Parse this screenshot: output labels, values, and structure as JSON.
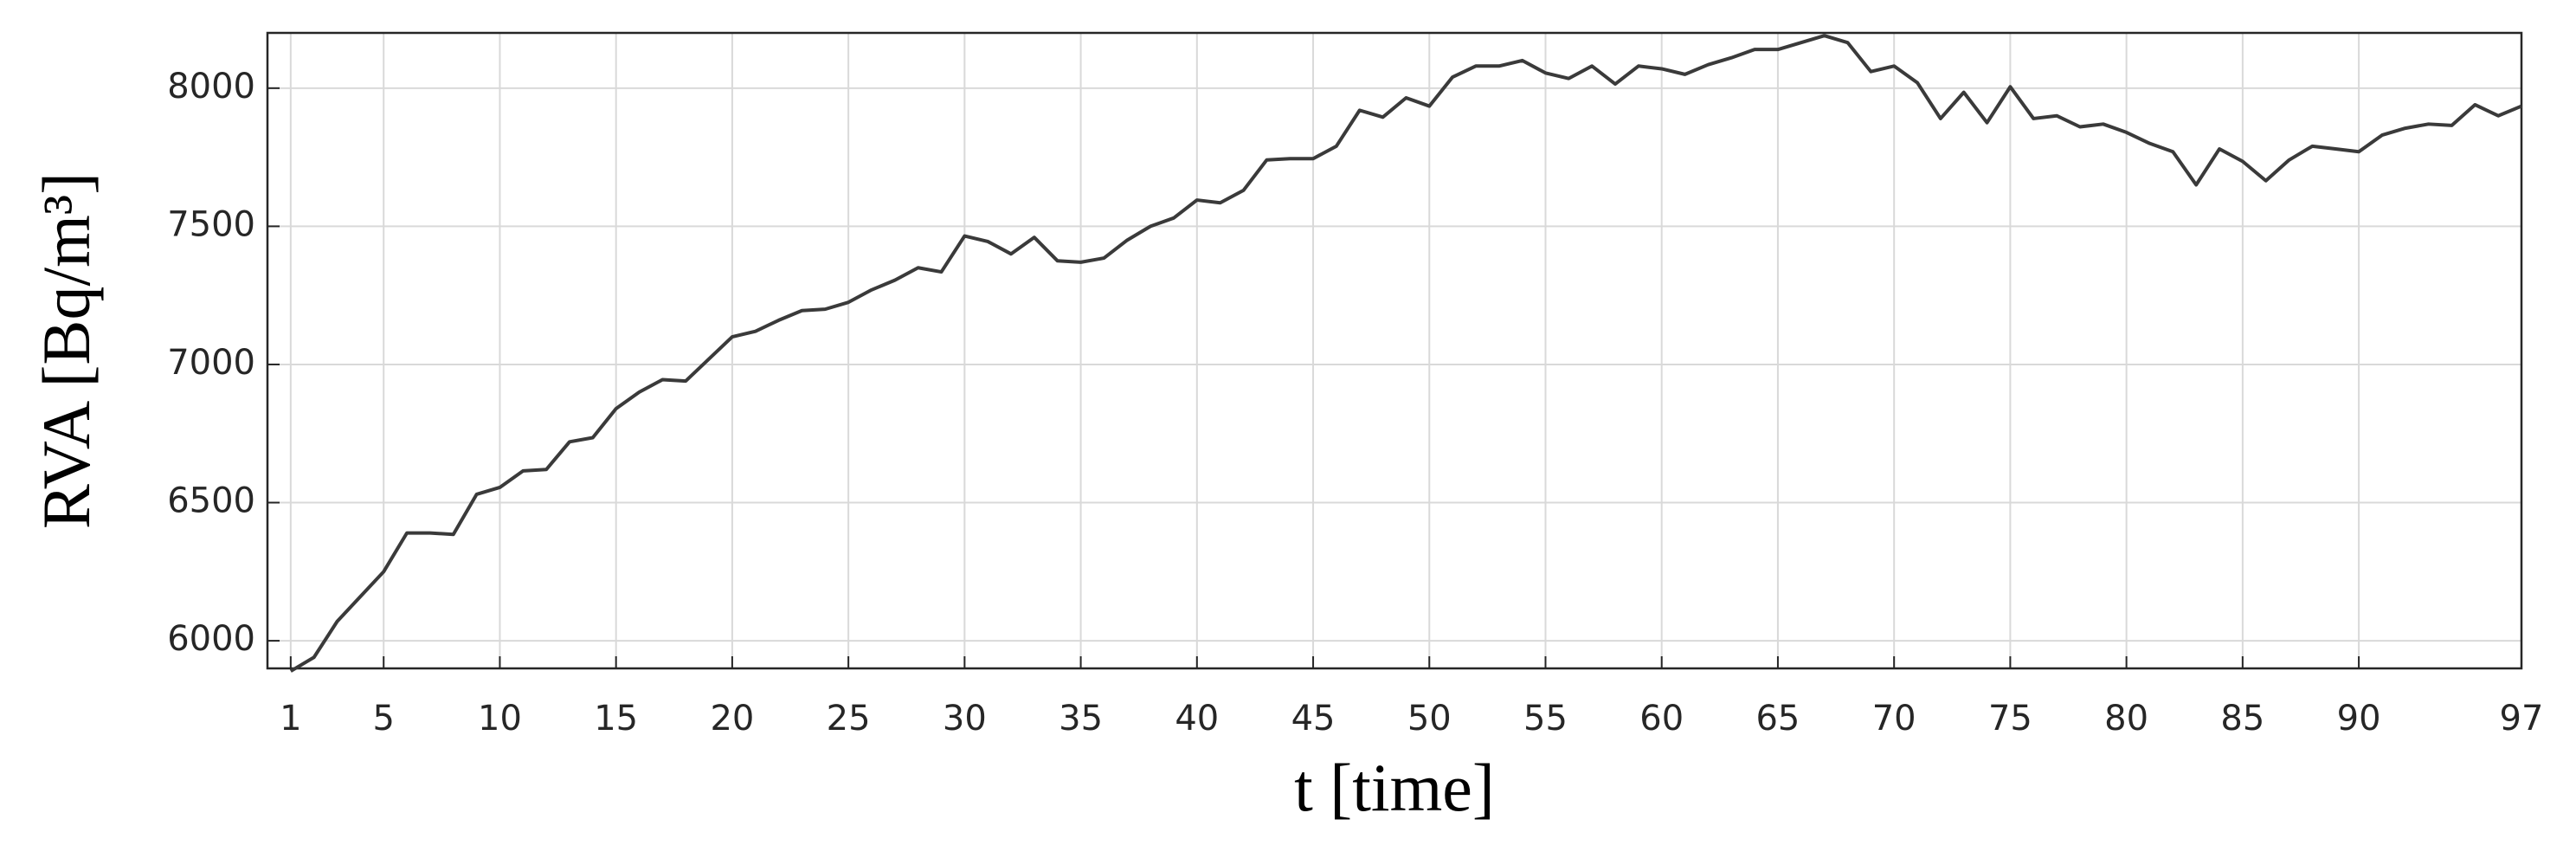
{
  "chart_data": {
    "type": "line",
    "xlabel": "t [time]",
    "ylabel": "RVA [Bq/m³]",
    "x": [
      1,
      2,
      3,
      4,
      5,
      6,
      7,
      8,
      9,
      10,
      11,
      12,
      13,
      14,
      15,
      16,
      17,
      18,
      19,
      20,
      21,
      22,
      23,
      24,
      25,
      26,
      27,
      28,
      29,
      30,
      31,
      32,
      33,
      34,
      35,
      36,
      37,
      38,
      39,
      40,
      41,
      42,
      43,
      44,
      45,
      46,
      47,
      48,
      49,
      50,
      51,
      52,
      53,
      54,
      55,
      56,
      57,
      58,
      59,
      60,
      61,
      62,
      63,
      64,
      65,
      66,
      67,
      68,
      69,
      70,
      71,
      72,
      73,
      74,
      75,
      76,
      77,
      78,
      79,
      80,
      81,
      82,
      83,
      84,
      85,
      86,
      87,
      88,
      89,
      90,
      91,
      92,
      93,
      94,
      95,
      96,
      97
    ],
    "values": [
      5890,
      5940,
      6070,
      6160,
      6250,
      6390,
      6390,
      6385,
      6530,
      6555,
      6615,
      6620,
      6720,
      6735,
      6840,
      6900,
      6945,
      6940,
      7020,
      7100,
      7120,
      7160,
      7195,
      7200,
      7225,
      7270,
      7305,
      7350,
      7335,
      7465,
      7445,
      7400,
      7460,
      7375,
      7370,
      7385,
      7450,
      7500,
      7530,
      7595,
      7585,
      7630,
      7740,
      7745,
      7745,
      7790,
      7920,
      7895,
      7965,
      7935,
      8040,
      8080,
      8080,
      8100,
      8055,
      8035,
      8080,
      8015,
      8080,
      8070,
      8050,
      8085,
      8110,
      8140,
      8140,
      8165,
      8190,
      8165,
      8060,
      8080,
      8020,
      7890,
      7985,
      7875,
      8005,
      7890,
      7900,
      7860,
      7870,
      7840,
      7800,
      7770,
      7650,
      7780,
      7735,
      7665,
      7740,
      7790,
      7780,
      7770,
      7830,
      7855,
      7870,
      7865,
      7940,
      7900,
      7935
    ],
    "color": "#3a3a3a",
    "xlim": [
      0,
      97
    ],
    "ylim": [
      5900,
      8200
    ],
    "xticks": [
      1,
      5,
      10,
      15,
      20,
      25,
      30,
      35,
      40,
      45,
      50,
      55,
      60,
      65,
      70,
      75,
      80,
      85,
      90,
      97
    ],
    "yticks": [
      6000,
      6500,
      7000,
      7500,
      8000
    ],
    "grid": true
  }
}
